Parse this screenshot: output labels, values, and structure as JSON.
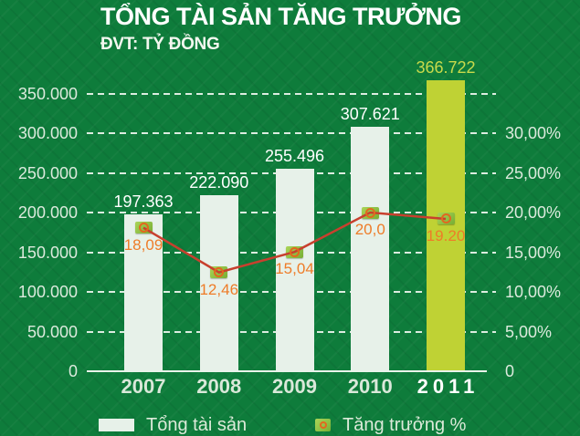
{
  "header": {
    "title": "TỔNG TÀI SẢN TĂNG TRƯỞNG",
    "subtitle": "ĐVT: TỶ ĐỒNG"
  },
  "chart_data": {
    "type": "bar",
    "subtype": "combo-bar-line",
    "categories": [
      "2007",
      "2008",
      "2009",
      "2010",
      "2011"
    ],
    "series": [
      {
        "name": "Tổng tài sản",
        "type": "bar",
        "axis": "left",
        "values": [
          197363,
          222090,
          255496,
          307621,
          366722
        ],
        "value_labels": [
          "197.363",
          "222.090",
          "255.496",
          "307.621",
          "366.722"
        ],
        "highlight_index": 4
      },
      {
        "name": "Tăng trưởng %",
        "type": "line",
        "axis": "right",
        "values": [
          18.09,
          12.46,
          15.04,
          20.0,
          19.2
        ],
        "value_labels": [
          "18,09",
          "12,46",
          "15,04",
          "20,0",
          "19.20"
        ]
      }
    ],
    "left_axis": {
      "ticks": [
        "350.000",
        "300.000",
        "250.000",
        "200.000",
        "150.000",
        "100.000",
        "50.000",
        "0"
      ],
      "min": 0,
      "max": 350000,
      "step": 50000
    },
    "right_axis": {
      "ticks": [
        "30,00%",
        "25,00%",
        "20,00%",
        "15,00%",
        "10,00%",
        "5,00%",
        "0"
      ],
      "min": 0,
      "max": 30,
      "step": 5,
      "unit": "%"
    },
    "grid": "dashed-horizontal",
    "legend_position": "bottom"
  },
  "legend": {
    "bar_label": "Tổng tài sản",
    "line_label": "Tăng trưởng %"
  },
  "colors": {
    "background": "#0e7c3b",
    "bar_fill": "#e7f1e9",
    "bar_highlight": "#bfd234",
    "line": "#c8402e",
    "value_label_orange": "#ee7c28",
    "bar_label_white": "#ffffff",
    "bar_label_highlight": "#c8da4b",
    "axis_text": "#dceadd",
    "marker_fill": "#8dc044",
    "marker_ring": "#e2681f"
  }
}
